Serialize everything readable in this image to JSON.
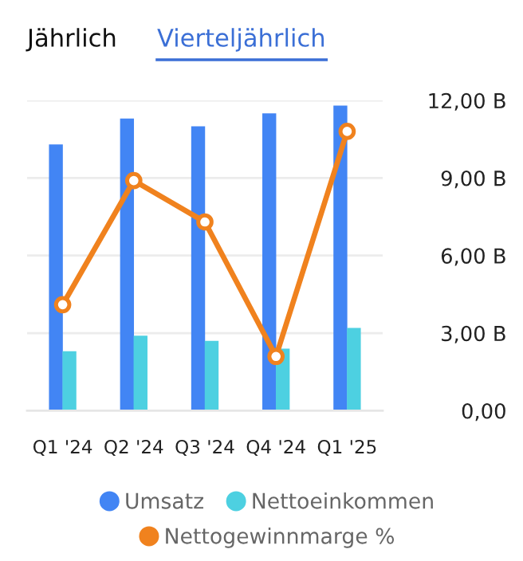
{
  "chart_data": {
    "type": "bar",
    "annotations": [
      "Jährlich",
      "Vierteljährlich"
    ],
    "categories": [
      "Q1 '24",
      "Q2 '24",
      "Q3 '24",
      "Q4 '24",
      "Q1 '25"
    ],
    "series": [
      {
        "name": "Umsatz",
        "color": "#4285f4",
        "values": [
          10.3,
          11.3,
          11.0,
          11.5,
          11.8
        ]
      },
      {
        "name": "Nettoeinkommen",
        "color": "#4dd0e1",
        "values": [
          2.3,
          2.9,
          2.7,
          2.4,
          3.2
        ]
      },
      {
        "name": "Nettogewinnmarge %",
        "type": "line",
        "color": "#f0821e",
        "values": [
          4.1,
          8.9,
          7.3,
          2.1,
          10.8
        ]
      }
    ],
    "ylim": [
      0,
      12
    ],
    "yticks": [
      {
        "value": 0,
        "label": "0,00"
      },
      {
        "value": 3,
        "label": "3,00 B"
      },
      {
        "value": 6,
        "label": "6,00 B"
      },
      {
        "value": 9,
        "label": "9,00 B"
      },
      {
        "value": 12,
        "label": "12,00 B"
      }
    ],
    "grid": "y",
    "legend": "bottom",
    "marker": "circle"
  }
}
